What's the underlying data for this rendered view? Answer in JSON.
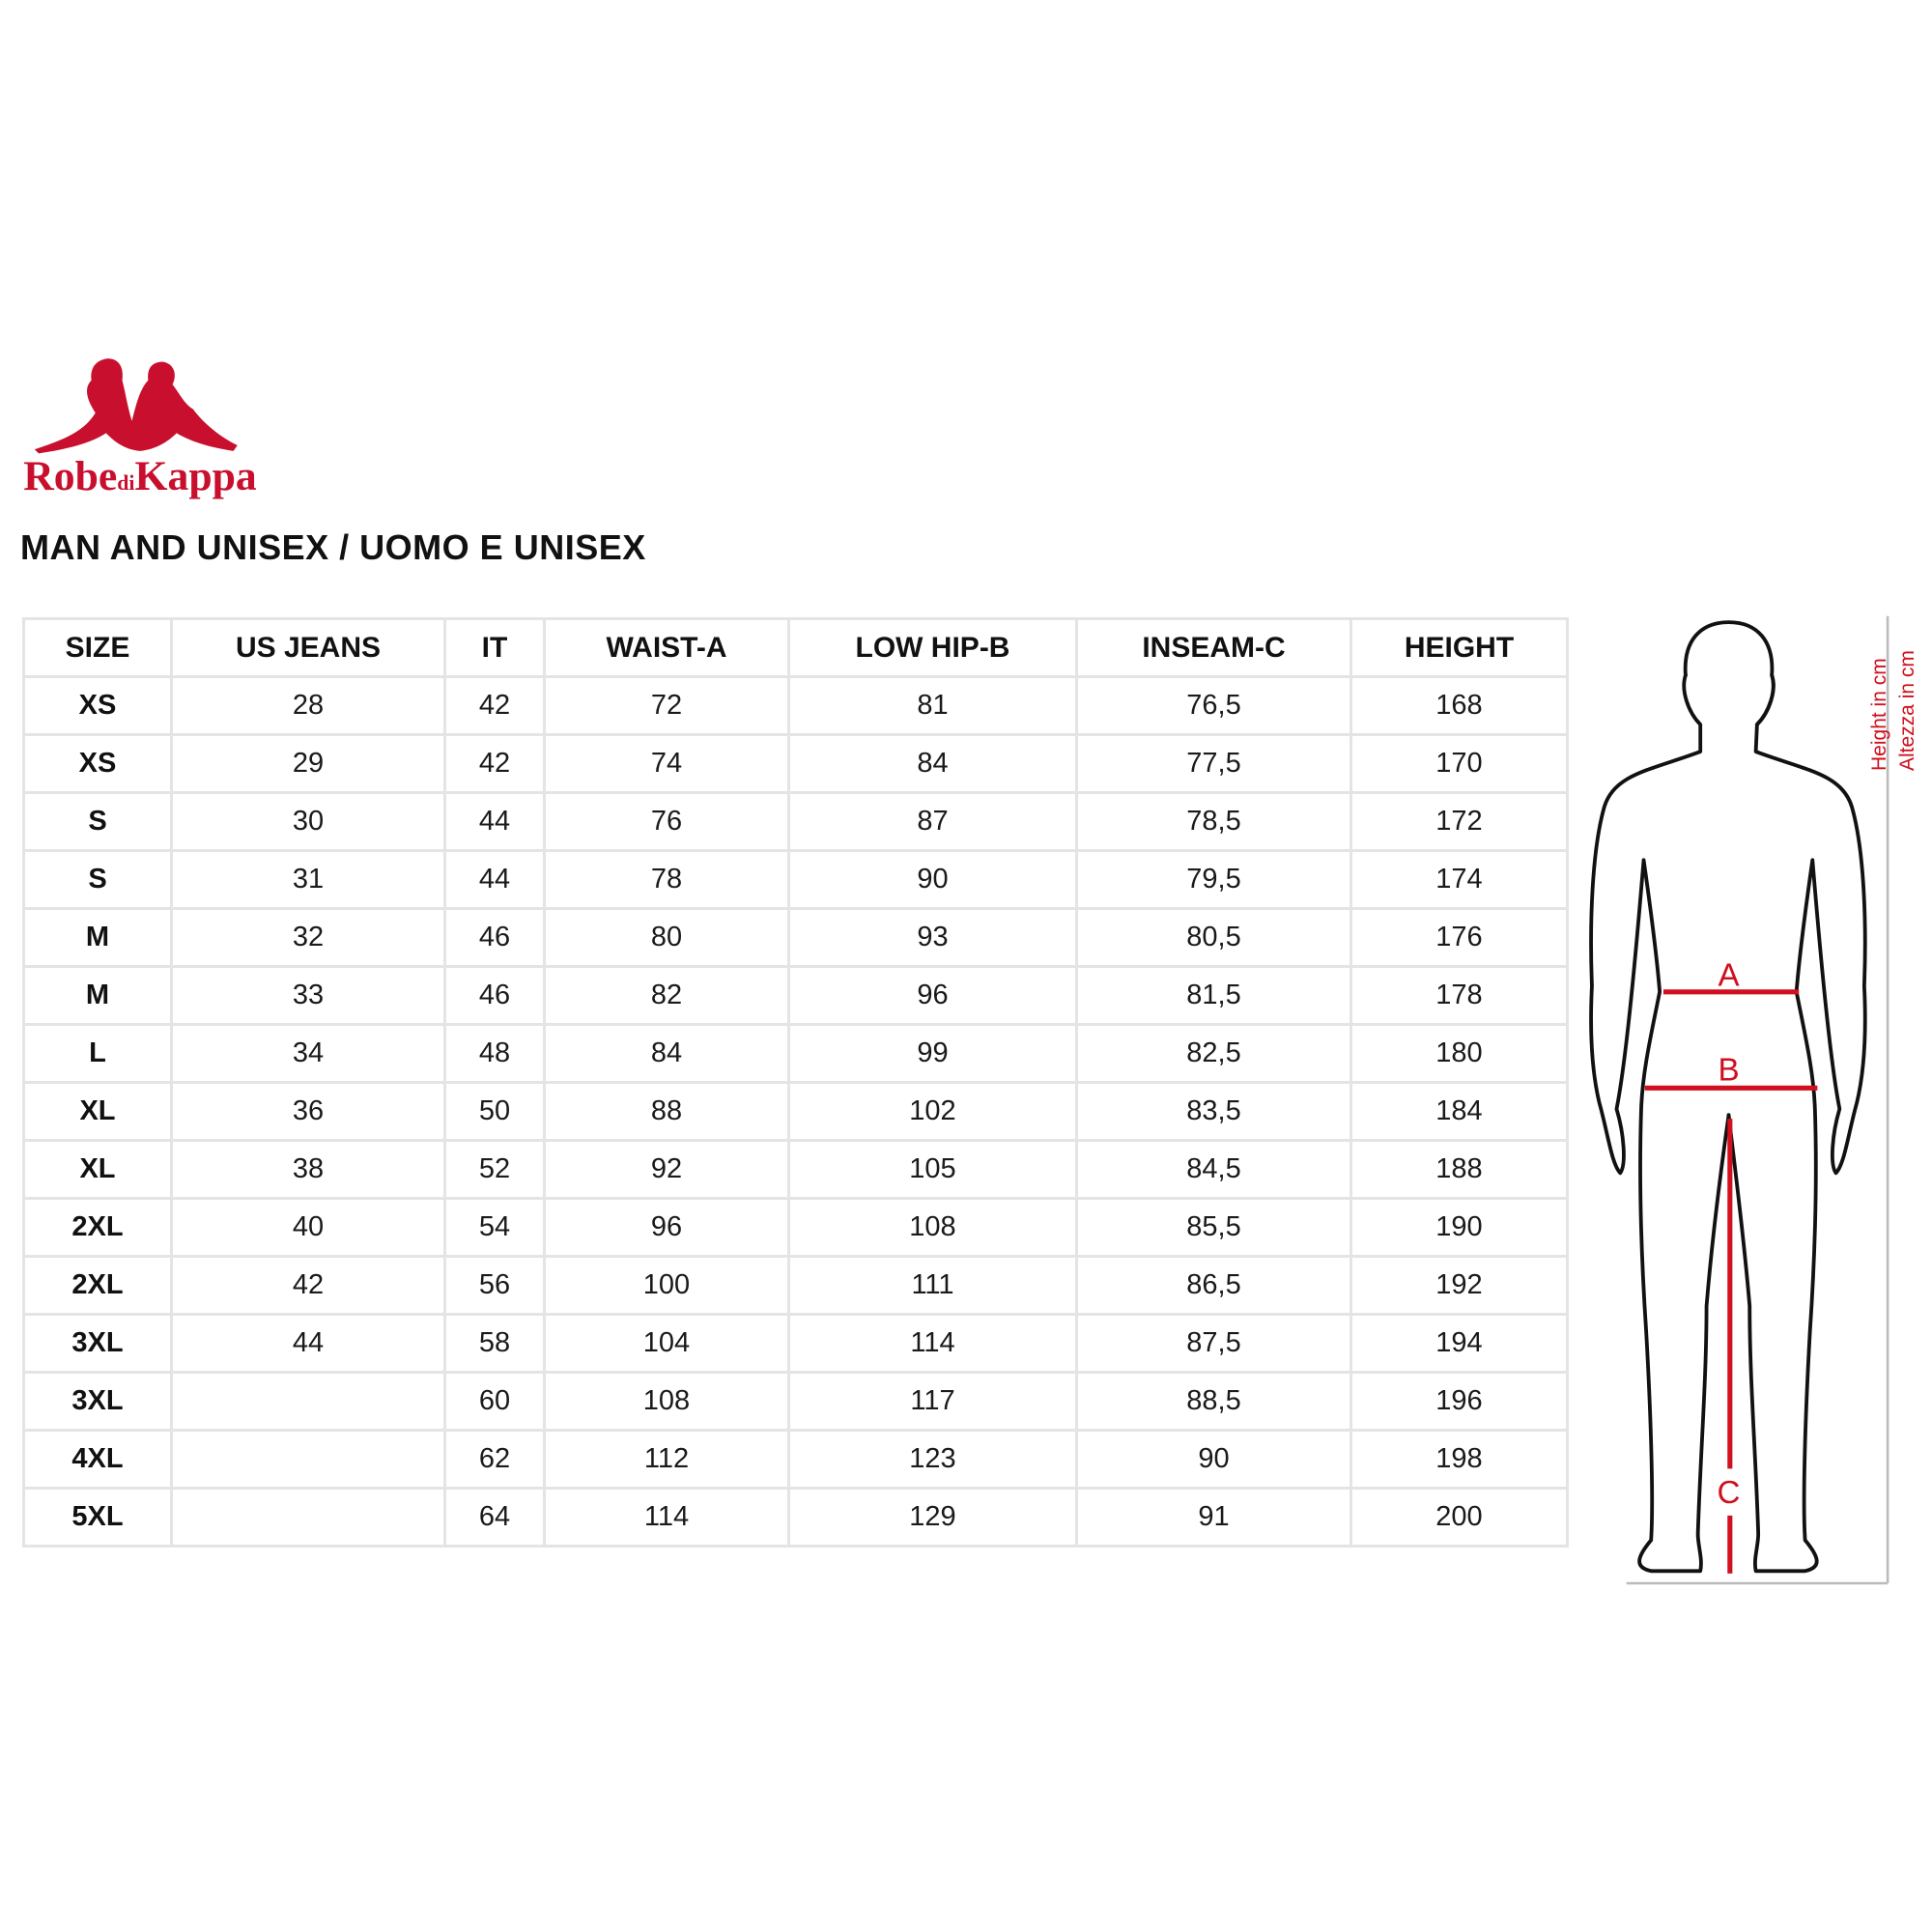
{
  "brand": {
    "logo_text": "Robe di Kappa",
    "color": "#c8102e"
  },
  "title": "MAN AND UNISEX / UOMO E UNISEX",
  "table": {
    "headers": [
      "SIZE",
      "US JEANS",
      "IT",
      "WAIST-A",
      "LOW HIP-B",
      "INSEAM-C",
      "HEIGHT"
    ],
    "rows": [
      [
        "XS",
        "28",
        "42",
        "72",
        "81",
        "76,5",
        "168"
      ],
      [
        "XS",
        "29",
        "42",
        "74",
        "84",
        "77,5",
        "170"
      ],
      [
        "S",
        "30",
        "44",
        "76",
        "87",
        "78,5",
        "172"
      ],
      [
        "S",
        "31",
        "44",
        "78",
        "90",
        "79,5",
        "174"
      ],
      [
        "M",
        "32",
        "46",
        "80",
        "93",
        "80,5",
        "176"
      ],
      [
        "M",
        "33",
        "46",
        "82",
        "96",
        "81,5",
        "178"
      ],
      [
        "L",
        "34",
        "48",
        "84",
        "99",
        "82,5",
        "180"
      ],
      [
        "XL",
        "36",
        "50",
        "88",
        "102",
        "83,5",
        "184"
      ],
      [
        "XL",
        "38",
        "52",
        "92",
        "105",
        "84,5",
        "188"
      ],
      [
        "2XL",
        "40",
        "54",
        "96",
        "108",
        "85,5",
        "190"
      ],
      [
        "2XL",
        "42",
        "56",
        "100",
        "111",
        "86,5",
        "192"
      ],
      [
        "3XL",
        "44",
        "58",
        "104",
        "114",
        "87,5",
        "194"
      ],
      [
        "3XL",
        "",
        "60",
        "108",
        "117",
        "88,5",
        "196"
      ],
      [
        "4XL",
        "",
        "62",
        "112",
        "123",
        "90",
        "198"
      ],
      [
        "5XL",
        "",
        "64",
        "114",
        "129",
        "91",
        "200"
      ]
    ]
  },
  "figure": {
    "label_a": "A",
    "label_b": "B",
    "label_c": "C",
    "height_label_en": "Height in cm",
    "height_label_it": "Altezza in cm",
    "accent_color": "#d0101e"
  }
}
